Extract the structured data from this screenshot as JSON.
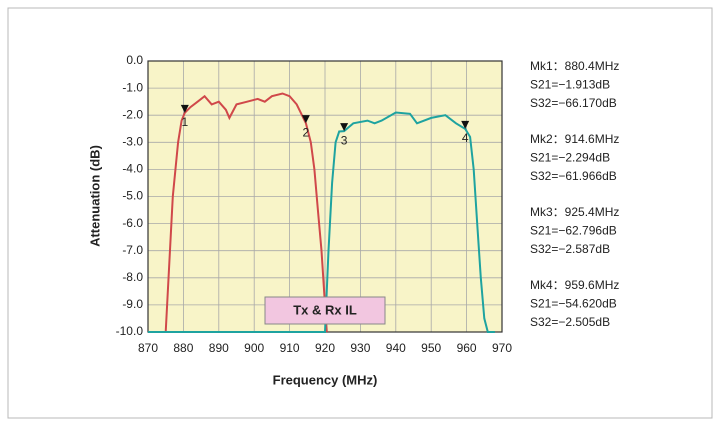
{
  "chart_data": {
    "type": "line",
    "xlabel": "Frequency (MHz)",
    "ylabel": "Attenuation (dB)",
    "xlim": [
      870,
      970
    ],
    "xticks": [
      870,
      880,
      890,
      900,
      910,
      920,
      930,
      940,
      950,
      960,
      970
    ],
    "ylim": [
      -10,
      0
    ],
    "yticks": [
      {
        "value": 0,
        "label": "0.0"
      },
      {
        "value": -1,
        "label": "-1.0"
      },
      {
        "value": -2,
        "label": "-2.0"
      },
      {
        "value": -3,
        "label": "-3.0"
      },
      {
        "value": -4,
        "label": "-4.0"
      },
      {
        "value": -5,
        "label": "-5.0"
      },
      {
        "value": -6,
        "label": "-6.0"
      },
      {
        "value": -7,
        "label": "-7.0"
      },
      {
        "value": -8,
        "label": "-8.0"
      },
      {
        "value": -9,
        "label": "-9.0"
      },
      {
        "value": -10,
        "label": "-10.0"
      }
    ],
    "grid": true,
    "series": [
      {
        "color": "#d0484a",
        "x": [
          875,
          877,
          878.5,
          879.5,
          880.4,
          882,
          884,
          886,
          888,
          890,
          892,
          893,
          895,
          898,
          901,
          903,
          905,
          908,
          910,
          912,
          914.6,
          916,
          917,
          918,
          919,
          920,
          920.5
        ],
        "values": [
          -10,
          -5,
          -3,
          -2.2,
          -1.913,
          -1.7,
          -1.5,
          -1.3,
          -1.6,
          -1.5,
          -1.8,
          -2.1,
          -1.6,
          -1.5,
          -1.4,
          -1.5,
          -1.3,
          -1.2,
          -1.3,
          -1.6,
          -2.294,
          -3.0,
          -4.0,
          -5.5,
          -7.0,
          -9.0,
          -10
        ]
      },
      {
        "color": "#1ea3a0",
        "x": [
          870,
          920,
          921,
          922,
          923,
          924,
          925.4,
          928,
          932,
          934,
          936,
          940,
          944,
          946,
          950,
          954,
          957,
          959.6,
          961,
          962,
          963,
          964,
          965,
          966,
          968
        ],
        "values": [
          -10,
          -10,
          -7,
          -4.5,
          -3,
          -2.6,
          -2.587,
          -2.3,
          -2.2,
          -2.3,
          -2.2,
          -1.9,
          -1.95,
          -2.3,
          -2.1,
          -2.0,
          -2.3,
          -2.505,
          -2.8,
          -4,
          -6,
          -8,
          -9.5,
          -10,
          -10
        ]
      }
    ],
    "markers": [
      {
        "label": "1",
        "x": 880.4,
        "y": -1.913
      },
      {
        "label": "2",
        "x": 914.6,
        "y": -2.294
      },
      {
        "label": "3",
        "x": 925.4,
        "y": -2.587
      },
      {
        "label": "4",
        "x": 959.6,
        "y": -2.505
      }
    ],
    "annotation": "Tx & Rx IL",
    "marker_readouts": [
      [
        "Mk1：880.4MHz",
        "S21=−1.913dB",
        "S32=−66.170dB"
      ],
      [
        "Mk2：914.6MHz",
        "S21=−2.294dB",
        "S32=−61.966dB"
      ],
      [
        "Mk3：925.4MHz",
        "S21=−62.796dB",
        "S32=−2.587dB"
      ],
      [
        "Mk4：959.6MHz",
        "S21=−54.620dB",
        "S32=−2.505dB"
      ]
    ]
  }
}
